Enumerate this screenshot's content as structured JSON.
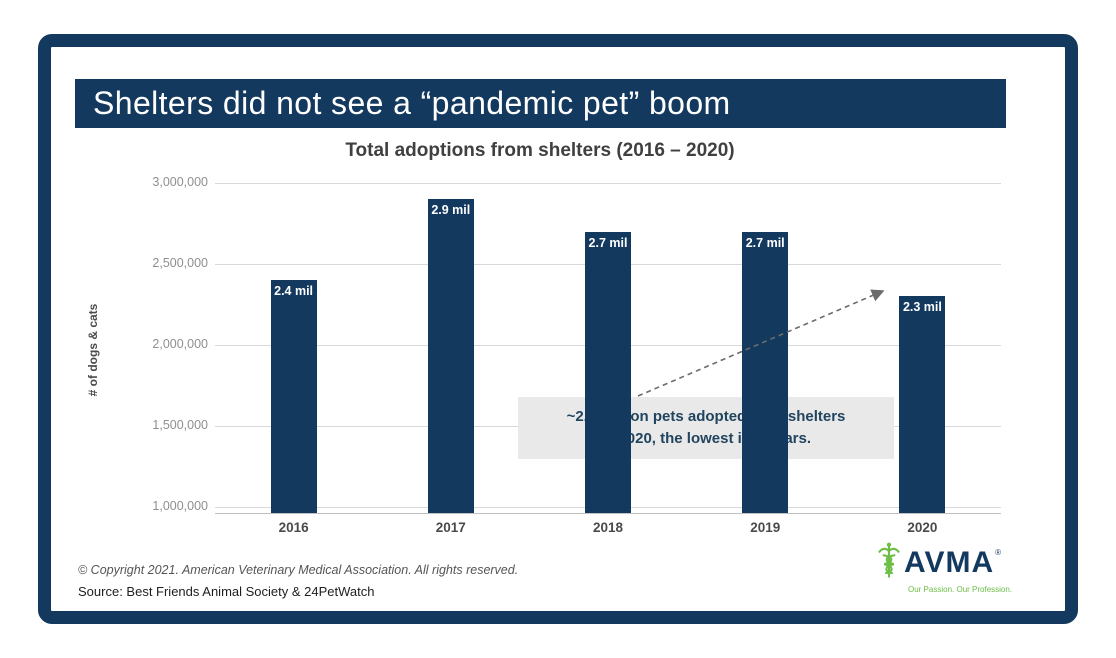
{
  "header": {
    "title": "Shelters did not see a “pandemic pet” boom"
  },
  "chart_data": {
    "type": "bar",
    "title": "Total adoptions from shelters  (2016 – 2020)",
    "ylabel": "# of dogs & cats",
    "categories": [
      "2016",
      "2017",
      "2018",
      "2019",
      "2020"
    ],
    "values": [
      2400000,
      2900000,
      2700000,
      2700000,
      2300000
    ],
    "bar_labels": [
      "2.4 mil",
      "2.9 mil",
      "2.7 mil",
      "2.7 mil",
      "2.3 mil"
    ],
    "ylim": [
      1000000,
      3000000
    ],
    "yticks": [
      {
        "value": 3000000,
        "label": "3,000,000"
      },
      {
        "value": 2500000,
        "label": "2,500,000"
      },
      {
        "value": 2000000,
        "label": "2,000,000"
      },
      {
        "value": 1500000,
        "label": "1,500,000"
      },
      {
        "value": 1000000,
        "label": "1,000,000"
      }
    ],
    "grid": true,
    "legend": "none",
    "bar_color": "#14395E",
    "annotation": {
      "line1": "~2.3 million pets adopted from shelters",
      "line2": "in 2020, the lowest in 5 years."
    }
  },
  "footer": {
    "copyright": "© Copyright 2021. American Veterinary Medical Association. All rights reserved.",
    "source": "Source: Best Friends Animal Society & 24PetWatch"
  },
  "logo": {
    "name": "AVMA",
    "registered": "®",
    "tagline": "Our Passion. Our Profession.",
    "icon": "caduceus-icon",
    "green": "#6CBE45",
    "navy": "#14395E"
  }
}
